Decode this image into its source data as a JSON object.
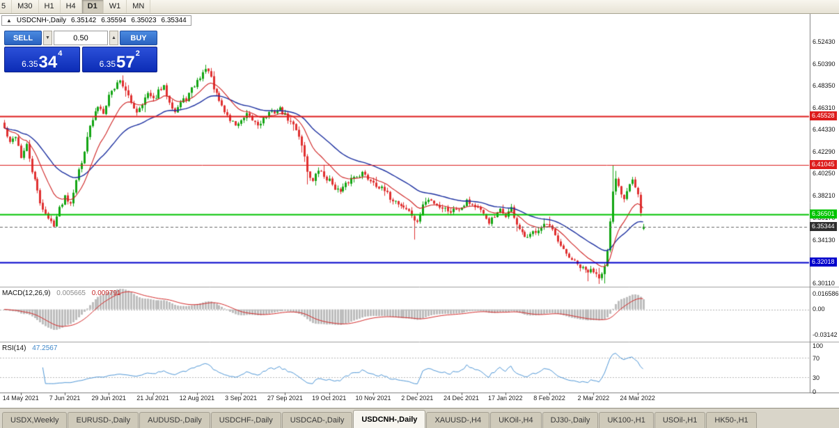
{
  "toolbar": {
    "timeframes": [
      "5",
      "M30",
      "H1",
      "H4",
      "D1",
      "W1",
      "MN"
    ],
    "active_index": 4
  },
  "symbol_info": {
    "collapse_icon": "▲",
    "title": "USDCNH-,Daily",
    "open": "6.35142",
    "high": "6.35594",
    "low": "6.35023",
    "close": "6.35344"
  },
  "trade_panel": {
    "sell_label": "SELL",
    "buy_label": "BUY",
    "volume": "0.50",
    "spin_down_icon": "▼",
    "spin_up_icon": "▲",
    "bid": {
      "small": "6.35",
      "big": "34",
      "sup": "4"
    },
    "ask": {
      "small": "6.35",
      "big": "57",
      "sup": "2"
    }
  },
  "chart": {
    "colors": {
      "up": "#13a513",
      "down": "#e03030",
      "ma_fast": "#cf2020",
      "ma_slow": "#1b2fa0",
      "macd_hist": "#bdbdbd",
      "macd_signal": "#d42a2a",
      "rsi": "#4f97d7"
    },
    "levels": [
      {
        "label": "6.45528",
        "price": 6.45528,
        "color": "#dd1c1c",
        "width": 2
      },
      {
        "label": "6.41045",
        "price": 6.41045,
        "color": "#dd1c1c",
        "width": 1
      },
      {
        "label": "6.36501",
        "price": 6.36501,
        "color": "#00c400",
        "width": 2
      },
      {
        "label": "6.32018",
        "price": 6.32018,
        "color": "#0000cc",
        "width": 2
      }
    ],
    "current_price": {
      "label": "6.35344",
      "color": "#2f2f2f"
    }
  },
  "indicators": {
    "macd": {
      "label": "MACD(12,26,9)",
      "value_main": "0.005665",
      "value_signal": "0.009791",
      "axis": [
        "0.016586",
        "0.00",
        "-0.03142"
      ]
    },
    "rsi": {
      "label": "RSI(14)",
      "value": "47.2567",
      "axis": [
        "100",
        "70",
        "30",
        "0"
      ]
    }
  },
  "tabs": [
    {
      "label": "USDX,Weekly"
    },
    {
      "label": "EURUSD-,Daily"
    },
    {
      "label": "AUDUSD-,Daily"
    },
    {
      "label": "USDCHF-,Daily"
    },
    {
      "label": "USDCAD-,Daily"
    },
    {
      "label": "USDCNH-,Daily",
      "active": true
    },
    {
      "label": "XAUUSD-,H4"
    },
    {
      "label": "UKOil-,H4"
    },
    {
      "label": "DJ30-,Daily"
    },
    {
      "label": "UK100-,H1"
    },
    {
      "label": "USOil-,H1"
    },
    {
      "label": "HK50-,H1"
    }
  ],
  "chart_data": {
    "type": "candlestick",
    "symbol": "USDCNH",
    "timeframe": "Daily",
    "bars": 233,
    "seed": 42,
    "noise": 0.005,
    "macd_scale_max": 0.019,
    "last_bar": {
      "open": 6.35142,
      "high": 6.35594,
      "low": 6.35023,
      "close": 6.35344
    },
    "y_axis_labels": [
      "6.52430",
      "6.50390",
      "6.48350",
      "6.46310",
      "6.44330",
      "6.42290",
      "6.40250",
      "6.38210",
      "6.36170",
      "6.34130",
      "6.32090",
      "6.30110"
    ],
    "x_labels": [
      "14 May 2021",
      "7 Jun 2021",
      "29 Jun 2021",
      "21 Jul 2021",
      "12 Aug 2021",
      "3 Sep 2021",
      "27 Sep 2021",
      "19 Oct 2021",
      "10 Nov 2021",
      "2 Dec 2021",
      "24 Dec 2021",
      "17 Jan 2022",
      "8 Feb 2022",
      "2 Mar 2022",
      "24 Mar 2022"
    ],
    "levels": [
      6.45528,
      6.41045,
      6.36501,
      6.32018
    ],
    "price_anchors": [
      [
        0,
        6.444
      ],
      [
        2,
        6.43
      ],
      [
        4,
        6.438
      ],
      [
        6,
        6.418
      ],
      [
        8,
        6.428
      ],
      [
        10,
        6.405
      ],
      [
        13,
        6.376
      ],
      [
        16,
        6.36
      ],
      [
        18,
        6.356
      ],
      [
        20,
        6.37
      ],
      [
        22,
        6.382
      ],
      [
        24,
        6.376
      ],
      [
        26,
        6.398
      ],
      [
        28,
        6.412
      ],
      [
        30,
        6.438
      ],
      [
        32,
        6.452
      ],
      [
        34,
        6.465
      ],
      [
        36,
        6.46
      ],
      [
        38,
        6.475
      ],
      [
        40,
        6.482
      ],
      [
        42,
        6.49
      ],
      [
        44,
        6.478
      ],
      [
        46,
        6.468
      ],
      [
        48,
        6.46
      ],
      [
        50,
        6.468
      ],
      [
        52,
        6.476
      ],
      [
        54,
        6.47
      ],
      [
        56,
        6.478
      ],
      [
        58,
        6.482
      ],
      [
        60,
        6.47
      ],
      [
        62,
        6.46
      ],
      [
        64,
        6.468
      ],
      [
        66,
        6.472
      ],
      [
        68,
        6.48
      ],
      [
        70,
        6.488
      ],
      [
        72,
        6.496
      ],
      [
        74,
        6.499
      ],
      [
        76,
        6.48
      ],
      [
        78,
        6.47
      ],
      [
        80,
        6.46
      ],
      [
        82,
        6.452
      ],
      [
        84,
        6.448
      ],
      [
        86,
        6.45
      ],
      [
        88,
        6.456
      ],
      [
        90,
        6.452
      ],
      [
        92,
        6.448
      ],
      [
        94,
        6.453
      ],
      [
        96,
        6.458
      ],
      [
        98,
        6.46
      ],
      [
        100,
        6.462
      ],
      [
        102,
        6.456
      ],
      [
        104,
        6.45
      ],
      [
        106,
        6.444
      ],
      [
        108,
        6.43
      ],
      [
        110,
        6.405
      ],
      [
        112,
        6.395
      ],
      [
        114,
        6.406
      ],
      [
        116,
        6.4
      ],
      [
        118,
        6.396
      ],
      [
        120,
        6.39
      ],
      [
        122,
        6.385
      ],
      [
        124,
        6.392
      ],
      [
        126,
        6.398
      ],
      [
        128,
        6.401
      ],
      [
        130,
        6.403
      ],
      [
        132,
        6.398
      ],
      [
        134,
        6.395
      ],
      [
        136,
        6.39
      ],
      [
        138,
        6.386
      ],
      [
        140,
        6.38
      ],
      [
        142,
        6.377
      ],
      [
        144,
        6.373
      ],
      [
        146,
        6.37
      ],
      [
        148,
        6.364
      ],
      [
        150,
        6.356
      ],
      [
        152,
        6.374
      ],
      [
        154,
        6.378
      ],
      [
        156,
        6.376
      ],
      [
        158,
        6.372
      ],
      [
        160,
        6.37
      ],
      [
        162,
        6.368
      ],
      [
        164,
        6.37
      ],
      [
        166,
        6.372
      ],
      [
        168,
        6.378
      ],
      [
        170,
        6.374
      ],
      [
        172,
        6.37
      ],
      [
        174,
        6.364
      ],
      [
        176,
        6.358
      ],
      [
        178,
        6.362
      ],
      [
        180,
        6.368
      ],
      [
        182,
        6.364
      ],
      [
        184,
        6.37
      ],
      [
        186,
        6.356
      ],
      [
        188,
        6.346
      ],
      [
        190,
        6.342
      ],
      [
        192,
        6.348
      ],
      [
        194,
        6.352
      ],
      [
        196,
        6.356
      ],
      [
        198,
        6.353
      ],
      [
        200,
        6.344
      ],
      [
        202,
        6.334
      ],
      [
        204,
        6.328
      ],
      [
        206,
        6.323
      ],
      [
        208,
        6.318
      ],
      [
        210,
        6.314
      ],
      [
        212,
        6.312
      ],
      [
        214,
        6.313
      ],
      [
        216,
        6.308
      ],
      [
        218,
        6.316
      ],
      [
        219,
        6.33
      ],
      [
        220,
        6.356
      ],
      [
        221,
        6.384
      ],
      [
        222,
        6.398
      ],
      [
        223,
        6.39
      ],
      [
        224,
        6.385
      ],
      [
        225,
        6.38
      ],
      [
        226,
        6.388
      ],
      [
        227,
        6.395
      ],
      [
        228,
        6.398
      ],
      [
        229,
        6.39
      ],
      [
        230,
        6.383
      ],
      [
        231,
        6.365
      ],
      [
        232,
        6.35344
      ]
    ],
    "forced_bars": [
      [
        73,
        6.503,
        null
      ],
      [
        74,
        6.4985,
        null
      ],
      [
        110,
        null,
        6.3925
      ],
      [
        149,
        null,
        6.3415
      ],
      [
        186,
        null,
        6.349
      ],
      [
        212,
        null,
        6.303
      ],
      [
        216,
        null,
        6.3005
      ],
      [
        218,
        null,
        6.301
      ],
      [
        221,
        6.4104,
        null
      ],
      [
        222,
        6.405,
        null
      ]
    ]
  }
}
